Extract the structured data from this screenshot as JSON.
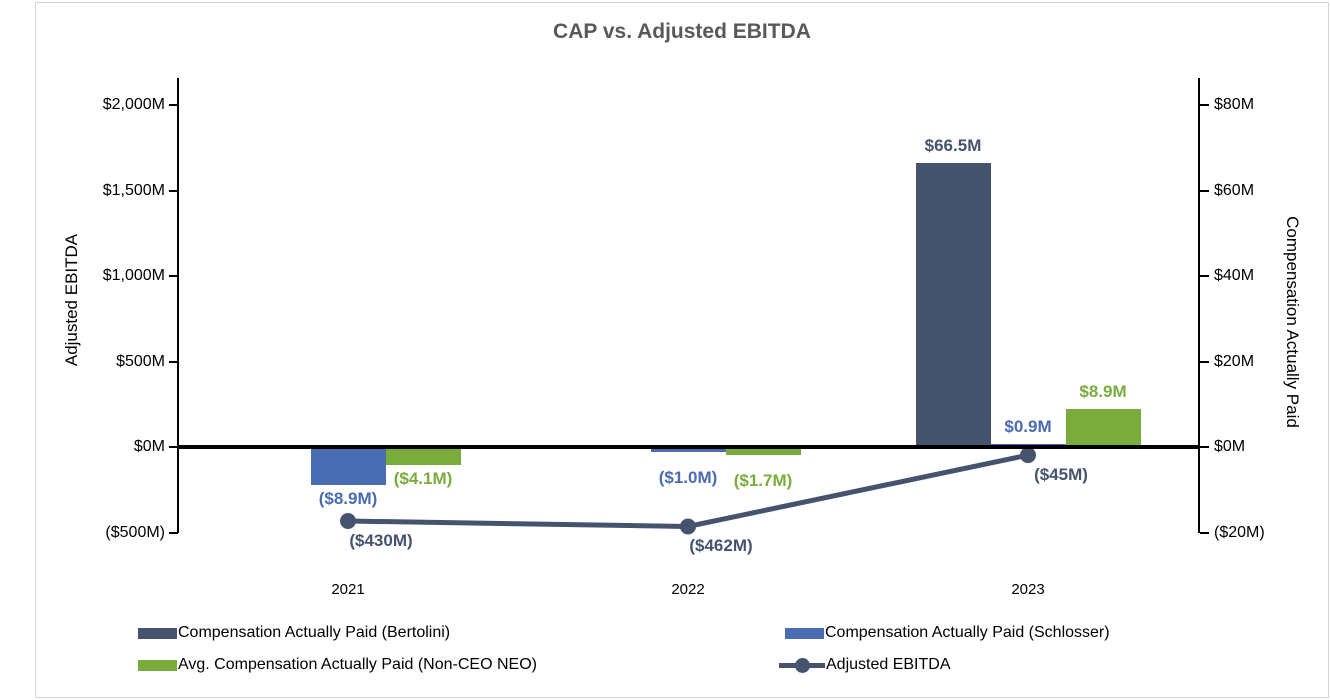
{
  "title": "CAP vs. Adjusted EBITDA",
  "chart_data": {
    "type": "combo_bar_line",
    "categories": [
      "2021",
      "2022",
      "2023"
    ],
    "series": [
      {
        "name": "Compensation Actually Paid (Bertolini)",
        "kind": "bar",
        "axis": "right",
        "color": "#46536E",
        "values": [
          null,
          null,
          66.5
        ],
        "data_labels": [
          null,
          null,
          "$66.5M"
        ]
      },
      {
        "name": "Compensation Actually Paid (Schlosser)",
        "kind": "bar",
        "axis": "right",
        "color": "#4A6CB2",
        "values": [
          -8.9,
          -1.0,
          0.9
        ],
        "data_labels": [
          "($8.9M)",
          "($1.0M)",
          "$0.9M"
        ]
      },
      {
        "name": "Avg. Compensation Actually Paid (Non-CEO NEO)",
        "kind": "bar",
        "axis": "right",
        "color": "#79AC3D",
        "values": [
          -4.1,
          -1.7,
          8.9
        ],
        "data_labels": [
          "($4.1M)",
          "($1.7M)",
          "$8.9M"
        ]
      },
      {
        "name": "Adjusted EBITDA",
        "kind": "line",
        "axis": "left",
        "color": "#46536E",
        "values": [
          -430,
          -462,
          -45
        ],
        "data_labels": [
          "($430M)",
          "($462M)",
          "($45M)"
        ]
      }
    ],
    "left_axis": {
      "title": "Adjusted EBITDA",
      "min": -500,
      "max": 2000,
      "tick_step": 500,
      "tick_labels": [
        "$2,000M",
        "$1,500M",
        "$1,000M",
        "$500M",
        "$0M",
        "($500M)"
      ]
    },
    "right_axis": {
      "title": "Compensation Actually Paid",
      "min": -20,
      "max": 80,
      "tick_step": 20,
      "tick_labels": [
        "$80M",
        "$60M",
        "$40M",
        "$20M",
        "$0M",
        "($20M)"
      ]
    },
    "legend_position": "bottom",
    "grid": "off",
    "colors": {
      "bertolini_bar": "#46536E",
      "schlosser_bar": "#4A6CB2",
      "non_ceo_bar": "#79AC3D",
      "ebitda_line": "#46536E",
      "title_text": "#595959"
    }
  }
}
